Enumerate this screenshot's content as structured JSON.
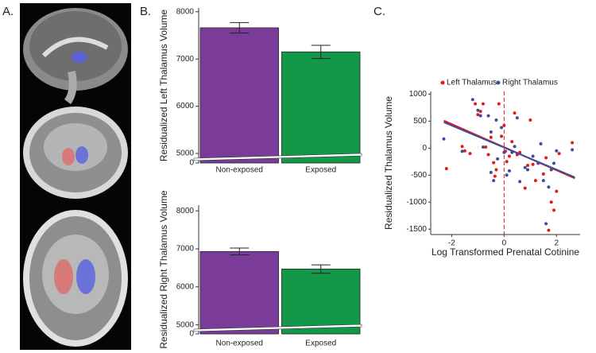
{
  "panel_labels": [
    "A.",
    "B.",
    "C."
  ],
  "chart_data": [
    {
      "type": "bar",
      "ylabel": "Residualized Left Thalamus Volume",
      "categories": [
        "Non-exposed",
        "Exposed"
      ],
      "values": [
        7660,
        7150
      ],
      "errors": [
        110,
        140
      ],
      "colors": [
        "#7b3c99",
        "#13984a"
      ],
      "ylim": [
        0,
        8080
      ],
      "axis_break": [
        0,
        4950
      ],
      "yticks": [
        0,
        5000,
        6000,
        7000,
        8000
      ]
    },
    {
      "type": "bar",
      "ylabel": "Residualized Right Thalamus Volume",
      "categories": [
        "Non-exposed",
        "Exposed"
      ],
      "values": [
        6930,
        6470
      ],
      "errors": [
        90,
        110
      ],
      "colors": [
        "#7b3c99",
        "#13984a"
      ],
      "ylim": [
        0,
        8150
      ],
      "axis_break": [
        0,
        4950
      ],
      "yticks": [
        0,
        5000,
        6000,
        7000,
        8000
      ]
    },
    {
      "type": "scatter",
      "xlabel": "Log Transformed Prenatal Cotinine",
      "ylabel": "Residualized Thalamus Volume",
      "xlim": [
        -2.8,
        2.9
      ],
      "ylim": [
        -1600,
        1050
      ],
      "xticks": [
        -2,
        0,
        2
      ],
      "yticks": [
        -1500,
        -1000,
        -500,
        0,
        500,
        1000
      ],
      "vline": {
        "x": 0,
        "color": "#e31a1c"
      },
      "series": [
        {
          "name": "Left Thalamus",
          "color": "#e31a1c",
          "x": [
            -2.2,
            -1.6,
            -1.5,
            -1.3,
            -1.1,
            -1.0,
            -0.9,
            -0.8,
            -0.7,
            -0.6,
            -0.5,
            -0.4,
            -0.35,
            -0.3,
            -0.2,
            -0.1,
            0.0,
            0.05,
            0.1,
            0.2,
            0.3,
            0.4,
            0.5,
            0.6,
            0.8,
            0.9,
            1.0,
            1.1,
            1.2,
            1.5,
            1.6,
            1.7,
            1.8,
            1.9,
            2.0,
            2.1,
            2.6
          ],
          "values": [
            -380,
            30,
            -50,
            -100,
            820,
            620,
            680,
            820,
            20,
            -120,
            200,
            -270,
            -520,
            -400,
            820,
            220,
            420,
            -60,
            -250,
            -150,
            120,
            650,
            -120,
            -80,
            -740,
            -320,
            520,
            -300,
            -600,
            -480,
            -180,
            -1520,
            -1000,
            -1150,
            -800,
            -100,
            100
          ],
          "fit": {
            "x": [
              -2.3,
              2.7
            ],
            "values": [
              510,
              -560
            ]
          }
        },
        {
          "name": "Right Thalamus",
          "color": "#3a4ea0",
          "x": [
            -2.3,
            -1.6,
            -1.2,
            -1.0,
            -0.9,
            -0.8,
            -0.6,
            -0.5,
            -0.5,
            -0.4,
            -0.3,
            -0.25,
            -0.1,
            0.0,
            0.1,
            0.2,
            0.3,
            0.4,
            0.5,
            0.6,
            0.8,
            0.9,
            1.1,
            1.3,
            1.4,
            1.5,
            1.6,
            1.7,
            1.8,
            1.9,
            2.0,
            2.6
          ],
          "values": [
            170,
            -60,
            900,
            700,
            600,
            20,
            600,
            -450,
            300,
            -600,
            520,
            -200,
            380,
            -80,
            -500,
            -420,
            -80,
            30,
            560,
            -620,
            -360,
            -400,
            -150,
            -280,
            80,
            -600,
            -1400,
            -720,
            -400,
            -280,
            -50,
            -30
          ],
          "fit": {
            "x": [
              -2.3,
              2.7
            ],
            "values": [
              480,
              -540
            ]
          }
        }
      ]
    }
  ]
}
